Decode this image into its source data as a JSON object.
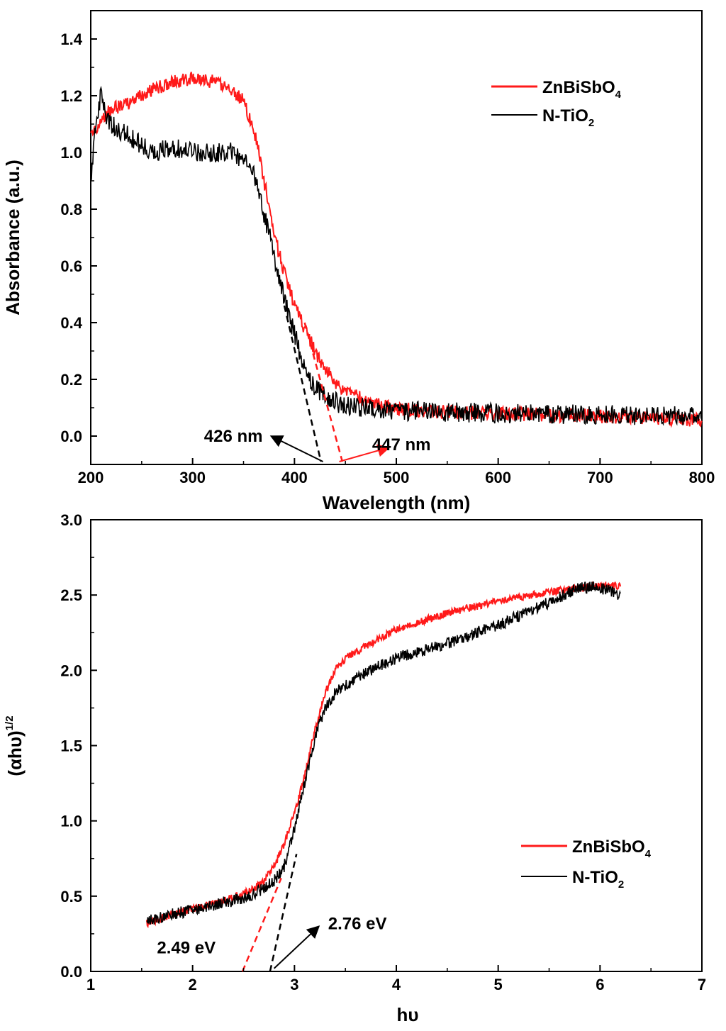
{
  "colors": {
    "zn": "#ff1a1a",
    "ti": "#000000"
  },
  "chart_data": [
    {
      "id": "absorbance",
      "type": "line",
      "xlabel": "Wavelength (nm)",
      "ylabel": "Absorbance (a.u.)",
      "xlim": [
        200,
        800
      ],
      "ylim": [
        -0.1,
        1.5
      ],
      "xticks": [
        "200",
        "300",
        "400",
        "500",
        "600",
        "700",
        "800"
      ],
      "yticks": [
        "0.0",
        "0.2",
        "0.4",
        "0.6",
        "0.8",
        "1.0",
        "1.2",
        "1.4"
      ],
      "legend_position": "top-right",
      "legend": [
        {
          "label": "ZnBiSbO",
          "sub": "4",
          "color": "#ff1a1a"
        },
        {
          "label": "N-TiO",
          "sub": "2",
          "color": "#000000"
        }
      ],
      "series": [
        {
          "name": "ZnBiSbO4",
          "color": "#ff1a1a",
          "noise": 0.025,
          "x": [
            200,
            210,
            220,
            240,
            260,
            280,
            300,
            320,
            340,
            350,
            360,
            365,
            370,
            375,
            380,
            385,
            390,
            395,
            400,
            410,
            420,
            430,
            440,
            450,
            460,
            480,
            500,
            550,
            600,
            650,
            700,
            750,
            800
          ],
          "y": [
            1.05,
            1.12,
            1.15,
            1.18,
            1.22,
            1.25,
            1.26,
            1.25,
            1.22,
            1.18,
            1.08,
            1.0,
            0.9,
            0.82,
            0.72,
            0.64,
            0.58,
            0.52,
            0.46,
            0.38,
            0.3,
            0.24,
            0.19,
            0.16,
            0.14,
            0.11,
            0.095,
            0.085,
            0.08,
            0.075,
            0.07,
            0.065,
            0.055
          ]
        },
        {
          "name": "N-TiO2",
          "color": "#000000",
          "noise": 0.035,
          "x": [
            200,
            205,
            210,
            215,
            220,
            240,
            260,
            280,
            300,
            320,
            340,
            350,
            360,
            365,
            370,
            375,
            380,
            385,
            390,
            395,
            400,
            405,
            410,
            420,
            430,
            440,
            450,
            470,
            500,
            550,
            600,
            700,
            800
          ],
          "y": [
            0.9,
            1.1,
            1.2,
            1.12,
            1.1,
            1.05,
            1.0,
            1.02,
            1.0,
            1.0,
            1.0,
            0.97,
            0.92,
            0.85,
            0.78,
            0.72,
            0.64,
            0.56,
            0.48,
            0.42,
            0.36,
            0.3,
            0.24,
            0.17,
            0.14,
            0.12,
            0.11,
            0.1,
            0.09,
            0.085,
            0.08,
            0.075,
            0.07
          ]
        }
      ],
      "tangents": [
        {
          "color": "#000000",
          "x": [
            390,
            426
          ],
          "y": [
            0.46,
            -0.09
          ]
        },
        {
          "color": "#ff1a1a",
          "x": [
            410,
            447
          ],
          "y": [
            0.4,
            -0.09
          ]
        }
      ],
      "annotations": [
        {
          "text": "426 nm",
          "color": "#000000",
          "tx": 340,
          "ty": -0.02,
          "arrow_from": [
            428,
            -0.09
          ],
          "arrow_to": [
            377,
            0.0
          ]
        },
        {
          "text": "447 nm",
          "color": "#000000",
          "tx": 505,
          "ty": -0.05,
          "arrow_from": [
            444,
            -0.09
          ],
          "arrow_to": [
            493,
            -0.04
          ],
          "arrow_color": "#ff1a1a"
        }
      ]
    },
    {
      "id": "tauc",
      "type": "line",
      "xlabel": "hυ",
      "ylabel": "(αhυ)",
      "ylabel_sup": "1/2",
      "xlim": [
        1,
        7
      ],
      "ylim": [
        0,
        3
      ],
      "xticks": [
        "1",
        "2",
        "3",
        "4",
        "5",
        "6",
        "7"
      ],
      "yticks": [
        "0.0",
        "0.5",
        "1.0",
        "1.5",
        "2.0",
        "2.5",
        "3.0"
      ],
      "legend_position": "bottom-right",
      "legend": [
        {
          "label": "ZnBiSbO",
          "sub": "4",
          "color": "#ff1a1a"
        },
        {
          "label": "N-TiO",
          "sub": "2",
          "color": "#000000"
        }
      ],
      "series": [
        {
          "name": "ZnBiSbO4",
          "color": "#ff1a1a",
          "noise": 0.025,
          "x": [
            1.55,
            1.8,
            2.0,
            2.2,
            2.4,
            2.6,
            2.7,
            2.8,
            2.9,
            3.0,
            3.1,
            3.2,
            3.3,
            3.4,
            3.5,
            3.6,
            3.8,
            4.0,
            4.5,
            5.0,
            5.5,
            6.0,
            6.2
          ],
          "y": [
            0.32,
            0.38,
            0.42,
            0.45,
            0.49,
            0.55,
            0.6,
            0.7,
            0.85,
            1.05,
            1.3,
            1.6,
            1.85,
            2.0,
            2.08,
            2.12,
            2.2,
            2.27,
            2.38,
            2.46,
            2.52,
            2.56,
            2.56
          ]
        },
        {
          "name": "N-TiO2",
          "color": "#000000",
          "noise": 0.04,
          "x": [
            1.55,
            1.8,
            2.0,
            2.2,
            2.4,
            2.6,
            2.8,
            2.9,
            3.0,
            3.1,
            3.2,
            3.3,
            3.4,
            3.5,
            3.6,
            3.8,
            4.0,
            4.5,
            5.0,
            5.5,
            5.8,
            6.0,
            6.2
          ],
          "y": [
            0.33,
            0.38,
            0.41,
            0.44,
            0.47,
            0.51,
            0.6,
            0.7,
            0.95,
            1.25,
            1.55,
            1.75,
            1.85,
            1.9,
            1.95,
            2.02,
            2.08,
            2.18,
            2.3,
            2.45,
            2.55,
            2.55,
            2.5
          ]
        }
      ],
      "tangents": [
        {
          "color": "#ff1a1a",
          "x": [
            2.49,
            2.87
          ],
          "y": [
            0.0,
            0.62
          ]
        },
        {
          "color": "#000000",
          "x": [
            2.76,
            3.02
          ],
          "y": [
            0.0,
            0.78
          ]
        }
      ],
      "annotations": [
        {
          "text": "2.49 eV",
          "color": "#000000",
          "tx": 1.65,
          "ty": 0.12
        },
        {
          "text": "2.76 eV",
          "color": "#000000",
          "tx": 3.33,
          "ty": 0.28,
          "arrow_from": [
            2.8,
            0.02
          ],
          "arrow_to": [
            3.24,
            0.3
          ]
        }
      ]
    }
  ]
}
